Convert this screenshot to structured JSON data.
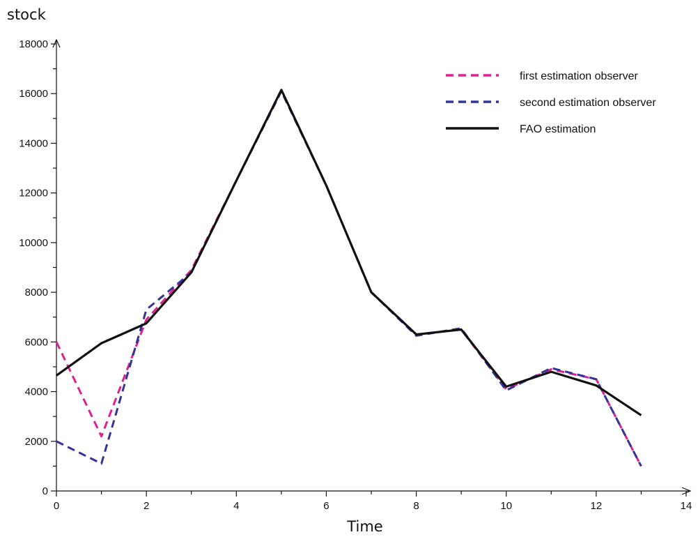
{
  "chart_data": {
    "type": "line",
    "xlabel": "Time",
    "ylabel": "stock",
    "xlim": [
      0,
      14
    ],
    "ylim": [
      0,
      18000
    ],
    "x_ticks_labeled": [
      0,
      2,
      4,
      6,
      8,
      10,
      12,
      14
    ],
    "x_ticks_minor": [
      1,
      3,
      5,
      7,
      9,
      11,
      13
    ],
    "y_ticks_labeled": [
      0,
      2000,
      4000,
      6000,
      8000,
      10000,
      12000,
      14000,
      16000,
      18000
    ],
    "y_ticks_minor": [
      1000,
      3000,
      5000,
      7000,
      9000,
      11000,
      13000,
      15000,
      17000
    ],
    "grid": false,
    "legend_position": "top-right",
    "x": [
      0,
      1,
      2,
      3,
      4,
      5,
      6,
      7,
      8,
      9,
      10,
      11,
      12,
      13
    ],
    "series": [
      {
        "name": "first estimation observer",
        "color": "#e0208f",
        "dash": "dashed",
        "values": [
          6000,
          2200,
          6900,
          8900,
          12500,
          16100,
          12300,
          8000,
          6300,
          6500,
          4100,
          4900,
          4500,
          1000
        ]
      },
      {
        "name": "second estimation observer",
        "color": "#333399",
        "dash": "dashed",
        "values": [
          2000,
          1100,
          7300,
          8800,
          12500,
          16100,
          12300,
          8000,
          6250,
          6550,
          4050,
          4950,
          4500,
          1000
        ]
      },
      {
        "name": "FAO estimation",
        "color": "#111111",
        "dash": "solid",
        "values": [
          4650,
          5950,
          6750,
          8800,
          12500,
          16150,
          12300,
          8000,
          6300,
          6500,
          4200,
          4800,
          4250,
          3050
        ]
      }
    ]
  }
}
